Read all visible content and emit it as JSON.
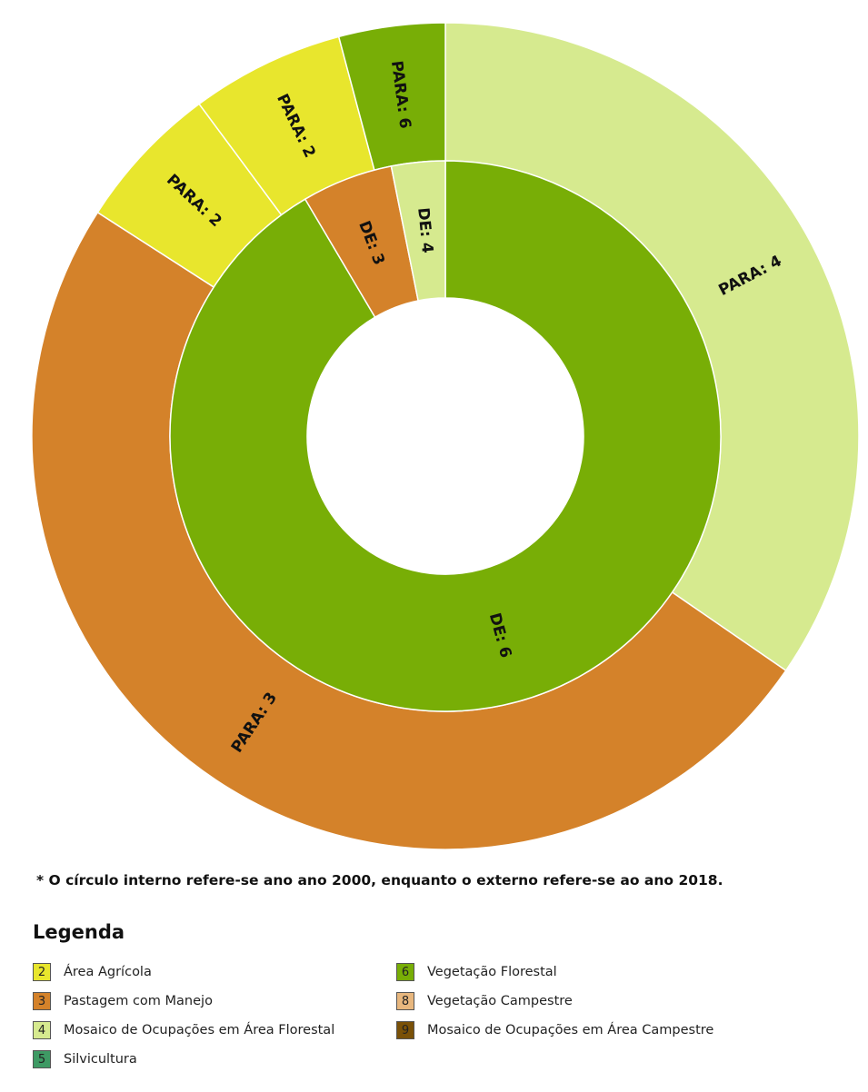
{
  "colors": {
    "2": "#E8E62D",
    "3": "#D4822A",
    "4": "#D6EA8F",
    "5": "#3E9A64",
    "6": "#78AE06",
    "8": "#E8B77E",
    "9": "#7A5108"
  },
  "chart_data": {
    "type": "sunburst",
    "inner": {
      "year": 2000,
      "segments": [
        {
          "code": "6",
          "label": "DE: 6",
          "value": 0.915
        },
        {
          "code": "3",
          "label": "DE: 3",
          "value": 0.0535
        },
        {
          "code": "4",
          "label": "DE: 4",
          "value": 0.0315
        }
      ]
    },
    "outer": {
      "year": 2018,
      "segments": [
        {
          "code": "4",
          "label": "PARA: 4",
          "value": 0.346
        },
        {
          "code": "3",
          "label": "PARA: 3",
          "value": 0.495
        },
        {
          "code": "2",
          "label": "PARA: 2",
          "value": 0.0575
        },
        {
          "code": "2",
          "label": "PARA: 2",
          "value": 0.06
        },
        {
          "code": "6",
          "label": "PARA: 6",
          "value": 0.0415
        }
      ]
    }
  },
  "footnote": "* O círculo interno refere-se ano ano 2000, enquanto o externo refere-se ao ano 2018.",
  "legend": {
    "title": "Legenda",
    "items": [
      {
        "code": "2",
        "label": "Área Agrícola"
      },
      {
        "code": "3",
        "label": "Pastagem com Manejo"
      },
      {
        "code": "4",
        "label": "Mosaico de Ocupações em Área Florestal"
      },
      {
        "code": "5",
        "label": "Silvicultura"
      },
      {
        "code": "6",
        "label": "Vegetação Florestal"
      },
      {
        "code": "8",
        "label": "Vegetação Campestre"
      },
      {
        "code": "9",
        "label": "Mosaico de Ocupações em Área Campestre"
      }
    ]
  }
}
